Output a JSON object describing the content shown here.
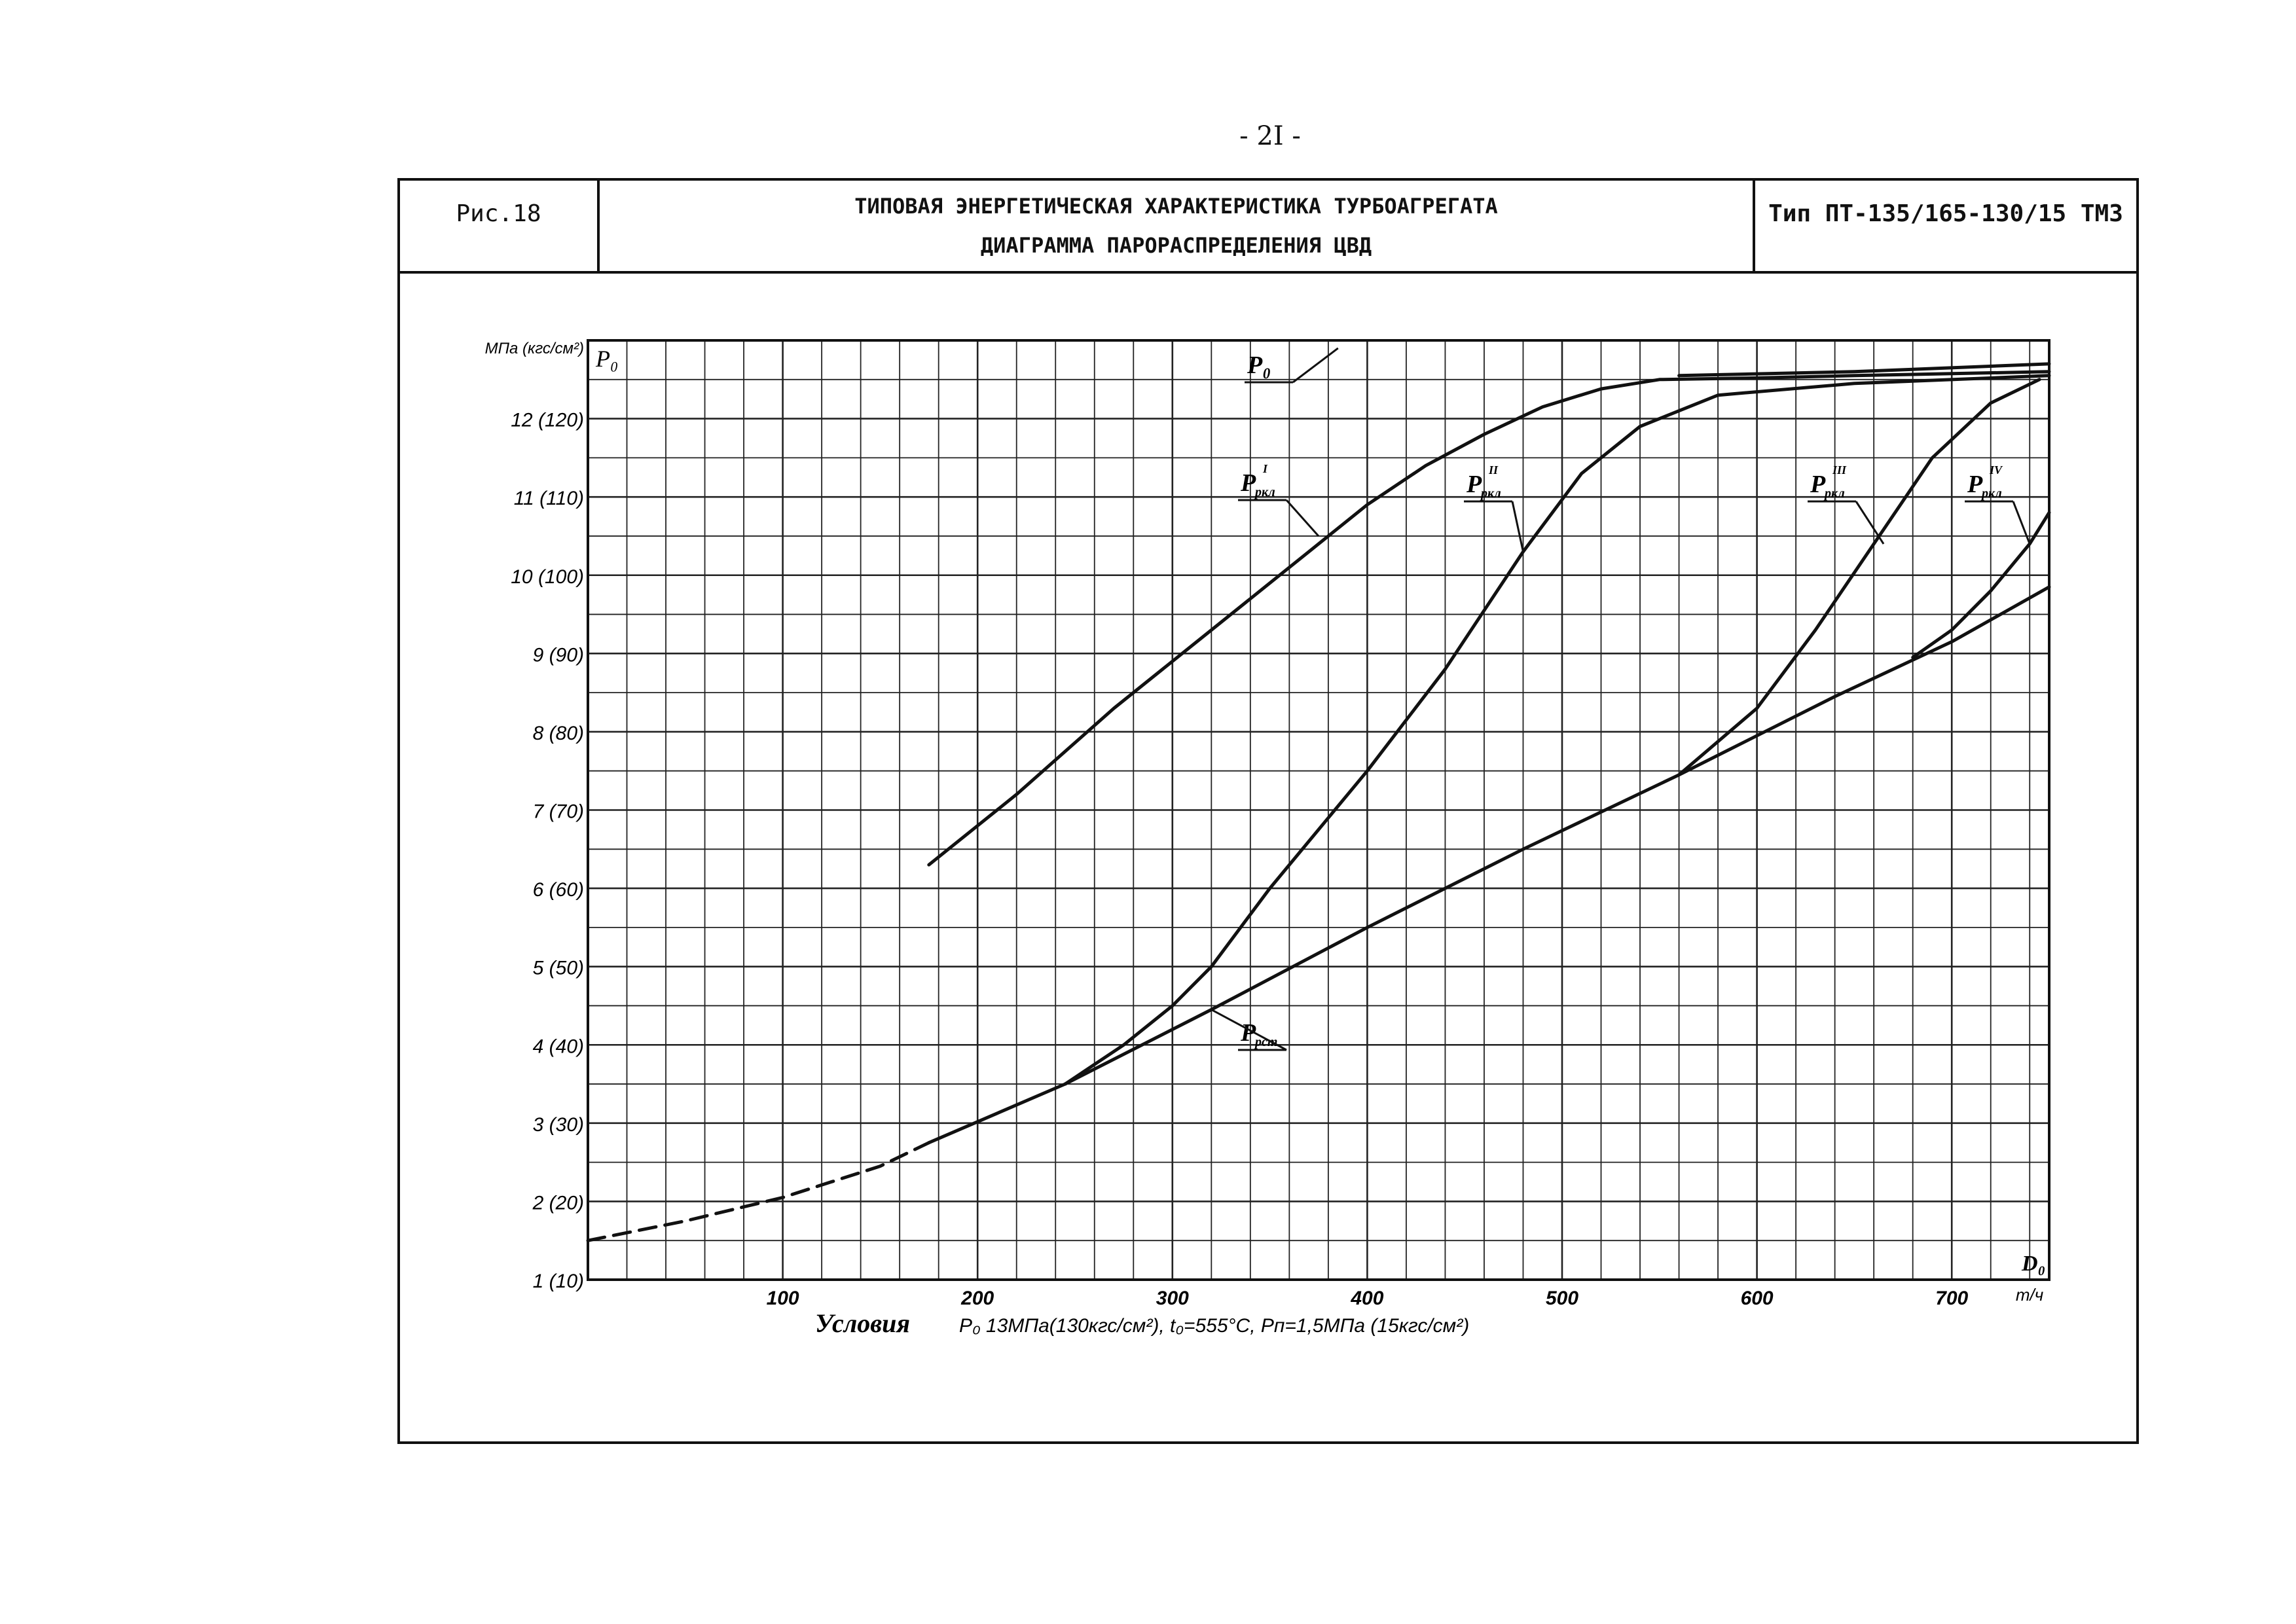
{
  "page_number": "- 2I -",
  "header": {
    "figure_label": "Рис.18",
    "title_line1": "ТИПОВАЯ ЭНЕРГЕТИЧЕСКАЯ ХАРАКТЕРИСТИКА ТУРБОАГРЕГАТА",
    "title_line2": "ДИАГРАММА ПАРОРАСПРЕДЕЛЕНИЯ ЦВД",
    "turbine_type": "Тип ПТ-135/165-130/15 ТМЗ"
  },
  "chart_data": {
    "type": "line",
    "title": "Диаграмма парораспределения ЦВД",
    "ylabel": "МПа (кгс/см²)",
    "y_symbol": "P₀",
    "xlabel": "D₀",
    "x_unit": "т/ч",
    "xlim": [
      0,
      750
    ],
    "ylim": [
      1,
      13
    ],
    "x_ticks": [
      {
        "value": 100,
        "label": "100"
      },
      {
        "value": 200,
        "label": "200"
      },
      {
        "value": 300,
        "label": "300"
      },
      {
        "value": 400,
        "label": "400"
      },
      {
        "value": 500,
        "label": "500"
      },
      {
        "value": 600,
        "label": "600"
      },
      {
        "value": 700,
        "label": "700"
      }
    ],
    "y_ticks": [
      {
        "value": 1,
        "label": "1 (10)"
      },
      {
        "value": 2,
        "label": "2 (20)"
      },
      {
        "value": 3,
        "label": "3 (30)"
      },
      {
        "value": 4,
        "label": "4 (40)"
      },
      {
        "value": 5,
        "label": "5 (50)"
      },
      {
        "value": 6,
        "label": "6 (60)"
      },
      {
        "value": 7,
        "label": "7 (70)"
      },
      {
        "value": 8,
        "label": "8 (80)"
      },
      {
        "value": 9,
        "label": "9 (90)"
      },
      {
        "value": 10,
        "label": "10 (100)"
      },
      {
        "value": 11,
        "label": "11 (110)"
      },
      {
        "value": 12,
        "label": "12 (120)"
      }
    ],
    "series": [
      {
        "name": "P₀",
        "key": "p0",
        "style": "solid",
        "x": [
          560,
          650,
          750
        ],
        "y": [
          12.55,
          12.6,
          12.7
        ]
      },
      {
        "name": "Pркл I",
        "key": "prkl1",
        "style": "solid",
        "x": [
          175,
          220,
          270,
          320,
          370,
          400,
          430,
          460,
          490,
          520,
          550,
          600,
          650,
          750
        ],
        "y": [
          6.3,
          7.2,
          8.3,
          9.3,
          10.3,
          10.9,
          11.4,
          11.8,
          12.15,
          12.38,
          12.5,
          12.52,
          12.55,
          12.6
        ]
      },
      {
        "name": "Pркл II",
        "key": "prkl2",
        "style": "solid",
        "x": [
          245,
          275,
          300,
          320,
          350,
          400,
          440,
          480,
          510,
          540,
          580,
          650,
          750
        ],
        "y": [
          3.5,
          4.0,
          4.5,
          5.0,
          6.0,
          7.5,
          8.8,
          10.3,
          11.3,
          11.9,
          12.3,
          12.45,
          12.55
        ]
      },
      {
        "name": "Pркл III",
        "key": "prkl3",
        "style": "solid",
        "x": [
          560,
          600,
          630,
          660,
          690,
          720,
          745
        ],
        "y": [
          7.45,
          8.3,
          9.3,
          10.4,
          11.5,
          12.2,
          12.5
        ]
      },
      {
        "name": "Pркл IV",
        "key": "prkl4",
        "style": "solid",
        "x": [
          680,
          700,
          720,
          740,
          750
        ],
        "y": [
          8.95,
          9.3,
          9.8,
          10.4,
          10.8
        ]
      },
      {
        "name": "Pрст",
        "key": "prst",
        "style": "solid",
        "x": [
          175,
          245,
          320,
          400,
          480,
          560,
          640,
          700,
          750
        ],
        "y": [
          2.75,
          3.5,
          4.45,
          5.5,
          6.5,
          7.45,
          8.45,
          9.15,
          9.85
        ]
      },
      {
        "name": "Pрст (экстраполяция)",
        "key": "prst_dash",
        "style": "dashed",
        "x": [
          0,
          50,
          100,
          150,
          175
        ],
        "y": [
          1.5,
          1.75,
          2.05,
          2.45,
          2.75
        ]
      }
    ],
    "annotations": {
      "p0": "P₀",
      "prkl1_base": "P",
      "prkl1_sup": "I",
      "prkl1_sub": "ркл",
      "prkl2_base": "P",
      "prkl2_sup": "II",
      "prkl2_sub": "ркл",
      "prkl3_base": "P",
      "prkl3_sup": "III",
      "prkl3_sub": "ркл",
      "prkl4_base": "P",
      "prkl4_sup": "IV",
      "prkl4_sub": "ркл",
      "prst_base": "P",
      "prst_sub": "рст"
    }
  },
  "conditions": {
    "label": "Условия",
    "text": "P₀ 13МПа(130кгс/см²), t₀=555°С, Pп=1,5МПа (15кгс/см²)"
  }
}
